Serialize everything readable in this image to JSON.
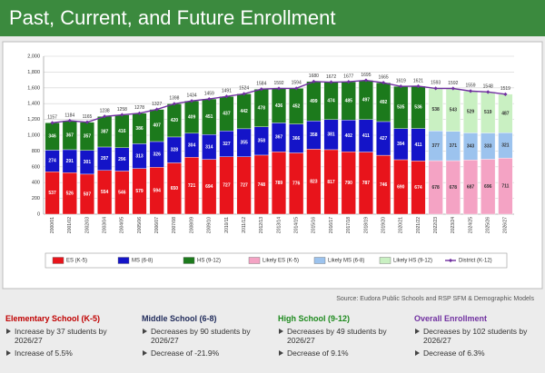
{
  "title": "Past, Current, and Future Enrollment",
  "chart_data": {
    "type": "bar",
    "stacked": true,
    "categories": [
      "2000/01",
      "2001/02",
      "2002/03",
      "2003/04",
      "2004/05",
      "2005/06",
      "2006/07",
      "2007/08",
      "2008/09",
      "2009/10",
      "2010/11",
      "2011/12",
      "2012/13",
      "2013/14",
      "2014/15",
      "2015/16",
      "2016/17",
      "2017/18",
      "2018/19",
      "2019/20",
      "2020/21",
      "2021/22",
      "2022/23",
      "2023/24",
      "2024/25",
      "2025/26",
      "2026/27"
    ],
    "series": [
      {
        "name": "ES (K-5)",
        "color": "#e8141b",
        "values": [
          537,
          526,
          507,
          554,
          546,
          579,
          594,
          650,
          721,
          694,
          727,
          727,
          748,
          789,
          776,
          823,
          817,
          790,
          787,
          746,
          690,
          674,
          null,
          null,
          null,
          null,
          null
        ]
      },
      {
        "name": "MS (6-8)",
        "color": "#1414c8",
        "values": [
          274,
          291,
          301,
          297,
          296,
          313,
          326,
          328,
          304,
          314,
          327,
          355,
          358,
          367,
          366,
          358,
          381,
          402,
          411,
          427,
          394,
          411,
          null,
          null,
          null,
          null,
          null
        ]
      },
      {
        "name": "HS (9-12)",
        "color": "#1c7a1c",
        "values": [
          346,
          367,
          357,
          387,
          416,
          386,
          407,
          420,
          409,
          451,
          437,
          442,
          478,
          436,
          452,
          499,
          474,
          485,
          497,
          492,
          535,
          536,
          null,
          null,
          null,
          null,
          null
        ]
      },
      {
        "name": "Likely ES (K-5)",
        "color": "#f4a3c4",
        "values": [
          null,
          null,
          null,
          null,
          null,
          null,
          null,
          null,
          null,
          null,
          null,
          null,
          null,
          null,
          null,
          null,
          null,
          null,
          null,
          null,
          null,
          null,
          678,
          678,
          687,
          696,
          711
        ]
      },
      {
        "name": "Likely MS (6-8)",
        "color": "#9cc3ee",
        "values": [
          null,
          null,
          null,
          null,
          null,
          null,
          null,
          null,
          null,
          null,
          null,
          null,
          null,
          null,
          null,
          null,
          null,
          null,
          null,
          null,
          null,
          null,
          377,
          371,
          343,
          333,
          321
        ]
      },
      {
        "name": "Likely HS (9-12)",
        "color": "#c9f0c2",
        "values": [
          null,
          null,
          null,
          null,
          null,
          null,
          null,
          null,
          null,
          null,
          null,
          null,
          null,
          null,
          null,
          null,
          null,
          null,
          null,
          null,
          null,
          null,
          538,
          543,
          529,
          519,
          487
        ]
      },
      {
        "name": "District (K-12)",
        "type": "line",
        "color": "#7030a0",
        "values": [
          1157,
          1184,
          1165,
          1238,
          1258,
          1278,
          1327,
          1398,
          1434,
          1459,
          1491,
          1524,
          1584,
          1592,
          1594,
          1680,
          1672,
          1677,
          1695,
          1665,
          1619,
          1621,
          1593,
          1592,
          1559,
          1548,
          1519
        ]
      }
    ],
    "ylim": [
      0,
      2000
    ],
    "yticks": [
      0,
      200,
      400,
      600,
      800,
      {
        "value": 1000,
        "label": "1,000"
      },
      {
        "value": 1200,
        "label": "1,200"
      },
      {
        "value": 1400,
        "label": "1,400"
      },
      {
        "value": 1600,
        "label": "1,600"
      },
      {
        "value": 1800,
        "label": "1,800"
      },
      {
        "value": 2000,
        "label": "2,000"
      }
    ],
    "grid": true,
    "legend": "bottom"
  },
  "source": "Source:  Eudora Public Schools and RSP SFM & Demographic Models",
  "sections": [
    {
      "heading": "Elementary School (K-5)",
      "color": "#c00000",
      "bullets": [
        "Increase by 37 students by 2026/27",
        "Increase of 5.5%"
      ]
    },
    {
      "heading": "Middle School (6-8)",
      "color": "#1f2a5a",
      "bullets": [
        "Decreases by 90 students by 2026/27",
        "Decrease of -21.9%"
      ]
    },
    {
      "heading": "High School (9-12)",
      "color": "#1e8a1e",
      "bullets": [
        "Decreases by 49 students by 2026/27",
        "Decrease of 9.1%"
      ]
    },
    {
      "heading": "Overall Enrollment",
      "color": "#7030a0",
      "bullets": [
        "Decreases by 102 students by 2026/27",
        "Decrease of 6.3%"
      ]
    }
  ]
}
